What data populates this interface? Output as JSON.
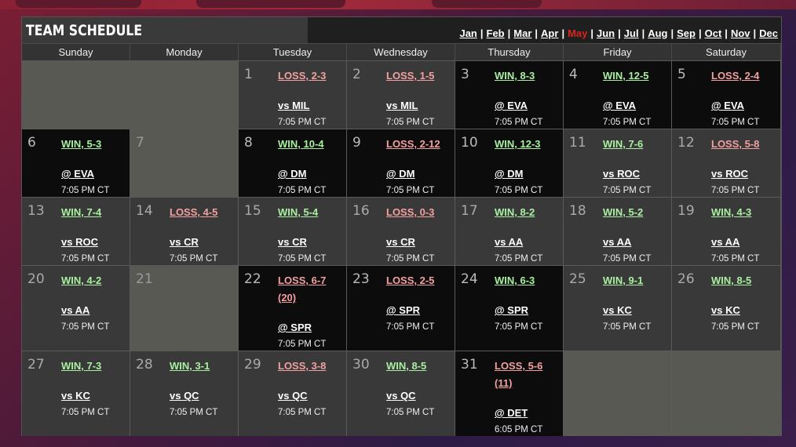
{
  "title": "TEAM SCHEDULE",
  "months": [
    "Jan",
    "Feb",
    "Mar",
    "Apr",
    "May",
    "Jun",
    "Jul",
    "Aug",
    "Sep",
    "Oct",
    "Nov",
    "Dec"
  ],
  "active_month": "May",
  "weekdays": [
    "Sunday",
    "Monday",
    "Tuesday",
    "Wednesday",
    "Thursday",
    "Friday",
    "Saturday"
  ],
  "colors": {
    "win": "#a9f0a0",
    "loss": "#f2a0a0",
    "active_month": "#d9261c",
    "home_cell": "#393939",
    "away_cell": "#0c0c0c",
    "offday_cell": "#595954"
  },
  "weeks": [
    [
      {
        "type": "blank"
      },
      {
        "type": "blank"
      },
      {
        "day": "1",
        "result": "LOSS, 2-3",
        "outcome": "loss",
        "opponent": "vs MIL",
        "time": "7:05 PM CT",
        "venue": "home"
      },
      {
        "day": "2",
        "result": "LOSS, 1-5",
        "outcome": "loss",
        "opponent": "vs MIL",
        "time": "7:05 PM CT",
        "venue": "home"
      },
      {
        "day": "3",
        "result": "WIN, 8-3",
        "outcome": "win",
        "opponent": "@ EVA",
        "time": "7:05 PM CT",
        "venue": "away"
      },
      {
        "day": "4",
        "result": "WIN, 12-5",
        "outcome": "win",
        "opponent": "@ EVA",
        "time": "7:05 PM CT",
        "venue": "away"
      },
      {
        "day": "5",
        "result": "LOSS, 2-4",
        "outcome": "loss",
        "opponent": "@ EVA",
        "time": "7:05 PM CT",
        "venue": "away"
      }
    ],
    [
      {
        "day": "6",
        "result": "WIN, 5-3",
        "outcome": "win",
        "opponent": "@ EVA",
        "time": "7:05 PM CT",
        "venue": "away"
      },
      {
        "day": "7",
        "type": "off"
      },
      {
        "day": "8",
        "result": "WIN, 10-4",
        "outcome": "win",
        "opponent": "@ DM",
        "time": "7:05 PM CT",
        "venue": "away"
      },
      {
        "day": "9",
        "result": "LOSS, 2-12",
        "outcome": "loss",
        "opponent": "@ DM",
        "time": "7:05 PM CT",
        "venue": "away"
      },
      {
        "day": "10",
        "result": "WIN, 12-3",
        "outcome": "win",
        "opponent": "@ DM",
        "time": "7:05 PM CT",
        "venue": "away"
      },
      {
        "day": "11",
        "result": "WIN, 7-6",
        "outcome": "win",
        "opponent": "vs ROC",
        "time": "7:05 PM CT",
        "venue": "home"
      },
      {
        "day": "12",
        "result": "LOSS, 5-8",
        "outcome": "loss",
        "opponent": "vs ROC",
        "time": "7:05 PM CT",
        "venue": "home"
      }
    ],
    [
      {
        "day": "13",
        "result": "WIN, 7-4",
        "outcome": "win",
        "opponent": "vs ROC",
        "time": "7:05 PM CT",
        "venue": "home"
      },
      {
        "day": "14",
        "result": "LOSS, 4-5",
        "outcome": "loss",
        "opponent": "vs CR",
        "time": "7:05 PM CT",
        "venue": "home"
      },
      {
        "day": "15",
        "result": "WIN, 5-4",
        "outcome": "win",
        "opponent": "vs CR",
        "time": "7:05 PM CT",
        "venue": "home"
      },
      {
        "day": "16",
        "result": "LOSS, 0-3",
        "outcome": "loss",
        "opponent": "vs CR",
        "time": "7:05 PM CT",
        "venue": "home"
      },
      {
        "day": "17",
        "result": "WIN, 8-2",
        "outcome": "win",
        "opponent": "vs AA",
        "time": "7:05 PM CT",
        "venue": "home"
      },
      {
        "day": "18",
        "result": "WIN, 5-2",
        "outcome": "win",
        "opponent": "vs AA",
        "time": "7:05 PM CT",
        "venue": "home"
      },
      {
        "day": "19",
        "result": "WIN, 4-3",
        "outcome": "win",
        "opponent": "vs AA",
        "time": "7:05 PM CT",
        "venue": "home"
      }
    ],
    [
      {
        "day": "20",
        "result": "WIN, 4-2",
        "outcome": "win",
        "opponent": "vs AA",
        "time": "7:05 PM CT",
        "venue": "home"
      },
      {
        "day": "21",
        "type": "off"
      },
      {
        "day": "22",
        "result": "LOSS, 6-7 (20)",
        "result_line1": "LOSS, 6-7",
        "result_line2": "(20)",
        "outcome": "loss",
        "opponent": "@ SPR",
        "time": "7:05 PM CT",
        "venue": "away"
      },
      {
        "day": "23",
        "result": "LOSS, 2-5",
        "outcome": "loss",
        "opponent": "@ SPR",
        "time": "7:05 PM CT",
        "venue": "away"
      },
      {
        "day": "24",
        "result": "WIN, 6-3",
        "outcome": "win",
        "opponent": "@ SPR",
        "time": "7:05 PM CT",
        "venue": "away"
      },
      {
        "day": "25",
        "result": "WIN, 9-1",
        "outcome": "win",
        "opponent": "vs KC",
        "time": "7:05 PM CT",
        "venue": "home"
      },
      {
        "day": "26",
        "result": "WIN, 8-5",
        "outcome": "win",
        "opponent": "vs KC",
        "time": "7:05 PM CT",
        "venue": "home"
      }
    ],
    [
      {
        "day": "27",
        "result": "WIN, 7-3",
        "outcome": "win",
        "opponent": "vs KC",
        "time": "7:05 PM CT",
        "venue": "home"
      },
      {
        "day": "28",
        "result": "WIN, 3-1",
        "outcome": "win",
        "opponent": "vs QC",
        "time": "7:05 PM CT",
        "venue": "home"
      },
      {
        "day": "29",
        "result": "LOSS, 3-8",
        "outcome": "loss",
        "opponent": "vs QC",
        "time": "7:05 PM CT",
        "venue": "home"
      },
      {
        "day": "30",
        "result": "WIN, 8-5",
        "outcome": "win",
        "opponent": "vs QC",
        "time": "7:05 PM CT",
        "venue": "home"
      },
      {
        "day": "31",
        "result": "LOSS, 5-6 (11)",
        "result_line1": "LOSS, 5-6",
        "result_line2": "(11)",
        "outcome": "loss",
        "opponent": "@ DET",
        "time": "6:05 PM CT",
        "venue": "away"
      },
      {
        "type": "blank"
      },
      {
        "type": "blank"
      }
    ]
  ]
}
